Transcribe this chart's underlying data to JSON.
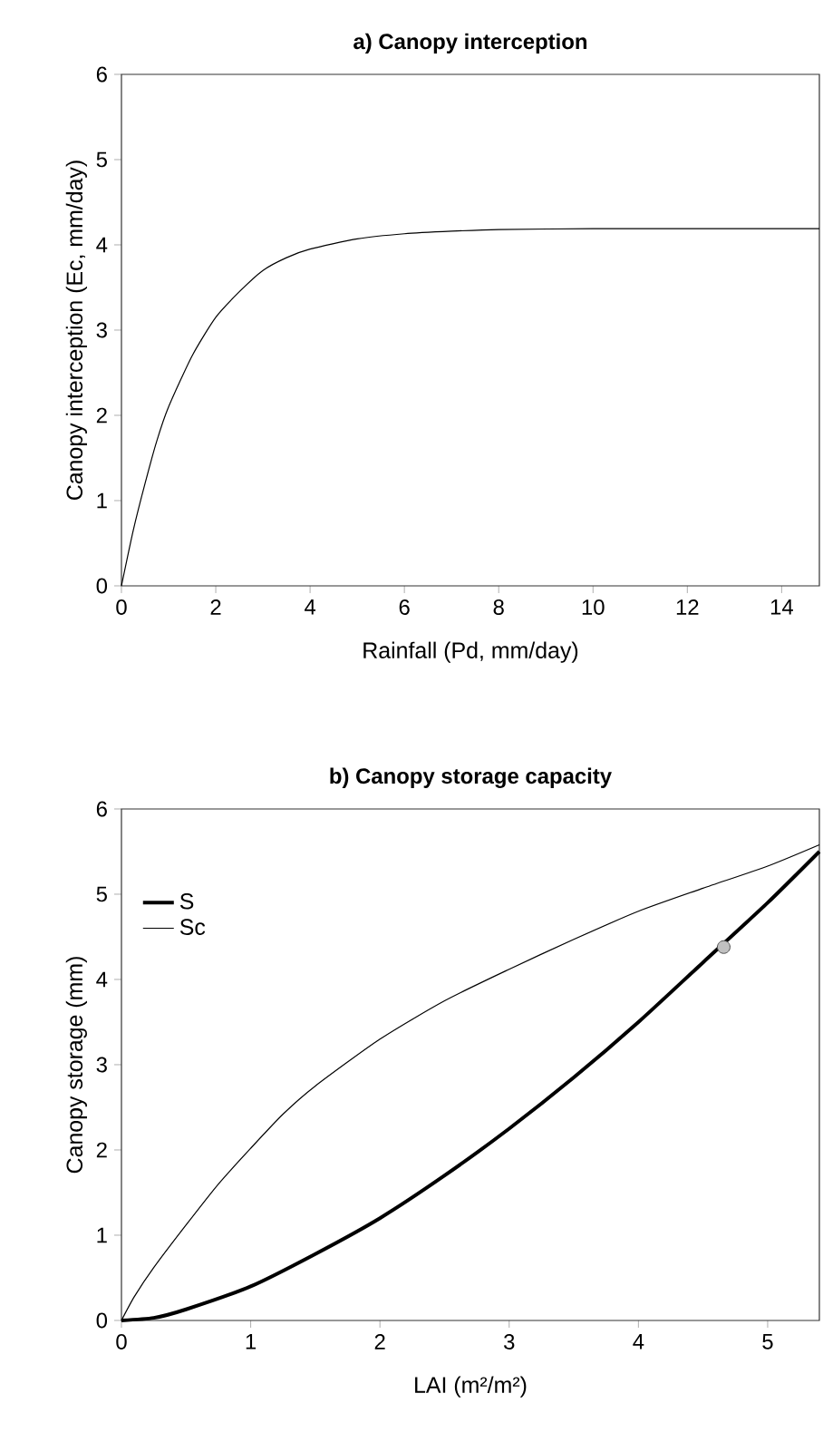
{
  "chart_data": [
    {
      "type": "line",
      "title": "**a) Canopy interception**",
      "xlabel": "Rainfall (Pd, mm/day)",
      "ylabel": "Canopy interception (Ec, mm/day)",
      "x": [
        0,
        0.25,
        0.5,
        0.75,
        1,
        1.5,
        2,
        2.5,
        3,
        3.5,
        4,
        5,
        6,
        7,
        8,
        10,
        12,
        14.8
      ],
      "values": [
        0,
        0.65,
        1.2,
        1.7,
        2.1,
        2.7,
        3.15,
        3.45,
        3.7,
        3.85,
        3.95,
        4.07,
        4.13,
        4.16,
        4.18,
        4.19,
        4.19,
        4.19
      ],
      "color": "#000000",
      "xlim": [
        0,
        14.8
      ],
      "ylim": [
        0,
        6
      ],
      "xticks": [
        0,
        2,
        4,
        6,
        8,
        10,
        12,
        14
      ],
      "yticks": [
        0,
        1,
        2,
        3,
        4,
        5,
        6
      ]
    },
    {
      "type": "line",
      "title": "**b) Canopy storage capacity**",
      "xlabel": "LAI (m²/m²)",
      "ylabel": "Canopy storage (mm)",
      "legend": "top left",
      "series": [
        {
          "name": "S",
          "color": "#000000",
          "x": [
            0,
            0.25,
            0.5,
            1,
            1.5,
            2,
            2.5,
            3,
            3.5,
            4,
            4.5,
            5,
            5.4
          ],
          "values": [
            0,
            0.03,
            0.13,
            0.4,
            0.78,
            1.2,
            1.7,
            2.25,
            2.85,
            3.5,
            4.2,
            4.9,
            5.5
          ]
        },
        {
          "name": "Sc",
          "color": "#000000",
          "x": [
            0,
            0.1,
            0.25,
            0.5,
            0.75,
            1,
            1.25,
            1.5,
            2,
            2.5,
            3,
            3.5,
            4,
            4.5,
            5,
            5.4
          ],
          "values": [
            0,
            0.28,
            0.62,
            1.12,
            1.6,
            2.02,
            2.42,
            2.75,
            3.3,
            3.75,
            4.12,
            4.47,
            4.8,
            5.07,
            5.33,
            5.58
          ]
        },
        {
          "type": "scatter",
          "marker": "circle",
          "color": "#c0c0c0",
          "x": [
            4.66
          ],
          "values": [
            4.38
          ]
        }
      ],
      "xlim": [
        0,
        5.4
      ],
      "ylim": [
        0,
        6
      ],
      "xticks": [
        0,
        1,
        2,
        3,
        4,
        5
      ],
      "yticks": [
        0,
        1,
        2,
        3,
        4,
        5,
        6
      ]
    }
  ]
}
